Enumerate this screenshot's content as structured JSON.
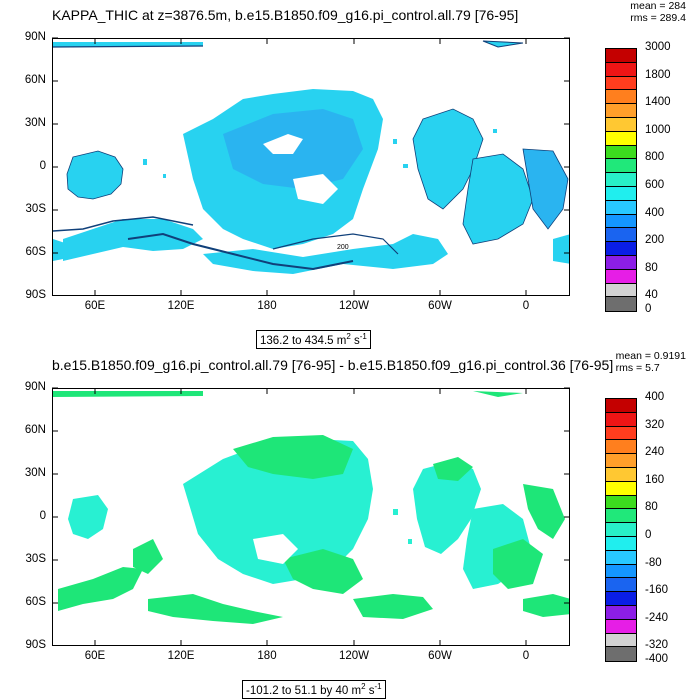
{
  "panel1": {
    "title": "KAPPA_THIC at z=3876.5m, b.e15.B1850.f09_g16.pi_control.all.79 [76-95]",
    "stats": {
      "mean": "mean = 284",
      "rms": "rms = 289.4"
    },
    "range_text": "136.2 to 434.5 m",
    "range_unit_sup": "2",
    "range_unit_tail": " s",
    "range_unit_sup2": "-1",
    "contour_label": "200",
    "colorbar_labels": [
      "3000",
      "1800",
      "1400",
      "1000",
      "800",
      "600",
      "400",
      "200",
      "80",
      "40",
      "0"
    ],
    "colorbar_colors": [
      "#c40000",
      "#ee1515",
      "#ff3d1e",
      "#ff7f1e",
      "#ff9f2a",
      "#ffc832",
      "#ffff00",
      "#3cdc1e",
      "#20e87a",
      "#28f0c8",
      "#20eeee",
      "#28c8ff",
      "#1496ff",
      "#1a64f0",
      "#0a1ee6",
      "#8c1ee6",
      "#e61ee6",
      "#d2d2d2",
      "#6e6e6e"
    ],
    "fill_colors": {
      "main": "#28d2f0",
      "light": "#40e6ff",
      "mid": "#2ab4f0",
      "coast": "#10407a"
    }
  },
  "panel2": {
    "title": "b.e15.B1850.f09_g16.pi_control.all.79 [76-95] - b.e15.B1850.f09_g16.pi_control.36 [76-95]",
    "stats": {
      "mean": "mean = 0.9191",
      "rms": "rms = 5.7"
    },
    "range_text": "-101.2 to 51.1 by 40 m",
    "range_unit_sup": "2",
    "range_unit_tail": " s",
    "range_unit_sup2": "-1",
    "colorbar_labels": [
      "400",
      "320",
      "240",
      "160",
      "80",
      "0",
      "-80",
      "-160",
      "-240",
      "-320",
      "-400"
    ],
    "colorbar_colors": [
      "#c40000",
      "#ee1515",
      "#ff3d1e",
      "#ff7f1e",
      "#ff9f2a",
      "#ffc832",
      "#ffff00",
      "#3cdc1e",
      "#20e87a",
      "#28f0c8",
      "#20eeee",
      "#28c8ff",
      "#1496ff",
      "#1a64f0",
      "#0a1ee6",
      "#8c1ee6",
      "#e61ee6",
      "#d2d2d2",
      "#6e6e6e"
    ],
    "fill_colors": {
      "green": "#1ee678",
      "cyan": "#28f0d2"
    }
  },
  "axes": {
    "y_labels": [
      "90N",
      "60N",
      "30N",
      "0",
      "30S",
      "60S",
      "90S"
    ],
    "x_labels": [
      "60E",
      "120E",
      "180",
      "120W",
      "60W",
      "0"
    ]
  }
}
